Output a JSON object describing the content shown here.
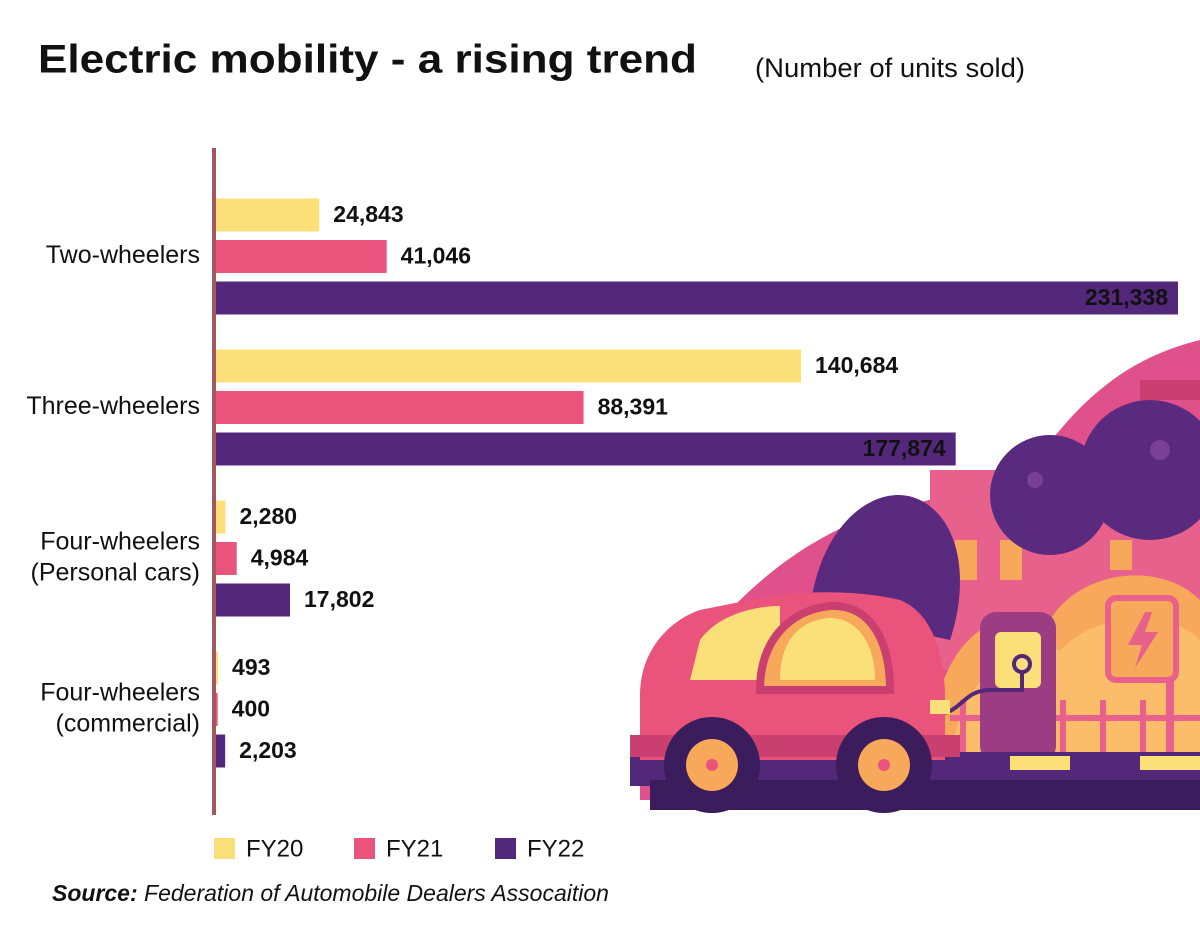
{
  "chart_data": {
    "type": "bar",
    "orientation": "horizontal",
    "title": "Electric mobility - a rising trend",
    "subtitle": "(Number of units sold)",
    "categories": [
      [
        "Two-wheelers"
      ],
      [
        "Three-wheelers"
      ],
      [
        "Four-wheelers",
        "(Personal cars)"
      ],
      [
        "Four-wheelers",
        "(commercial)"
      ]
    ],
    "series": [
      {
        "name": "FY20",
        "color": "#fbe07a",
        "values": [
          24843,
          140684,
          2280,
          493
        ],
        "value_labels": [
          "24,843",
          "140,684",
          "2,280",
          "493"
        ]
      },
      {
        "name": "FY21",
        "color": "#ea537c",
        "values": [
          41046,
          88391,
          4984,
          400
        ],
        "value_labels": [
          "41,046",
          "88,391",
          "4,984",
          "400"
        ]
      },
      {
        "name": "FY22",
        "color": "#53277a",
        "values": [
          231338,
          177874,
          17802,
          2203
        ],
        "value_labels": [
          "231,338",
          "177,874",
          "17,802",
          "2,203"
        ]
      }
    ],
    "source": {
      "label": "Source:",
      "text": "Federation of Automobile Dealers Assocaition"
    }
  }
}
